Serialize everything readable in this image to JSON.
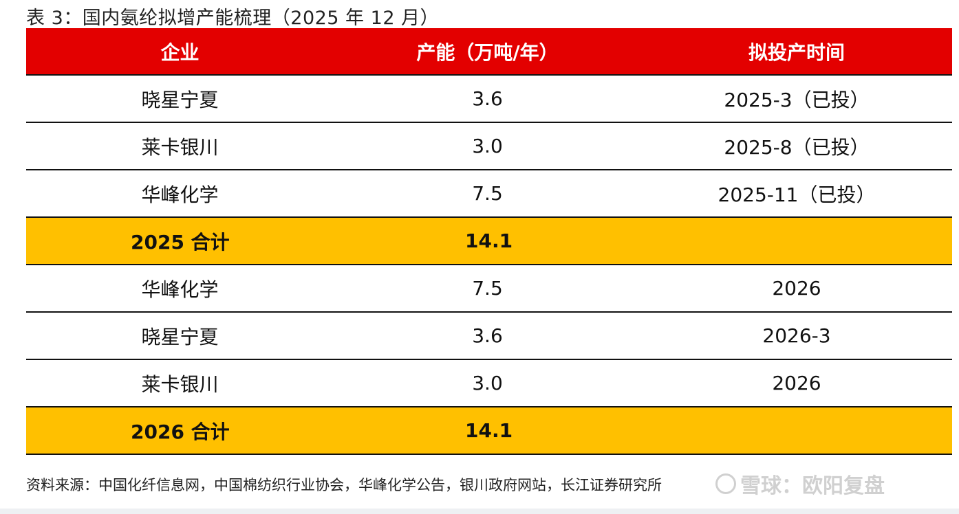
{
  "title": "表 3：国内氨纶拟增产能梳理（2025 年 12 月）",
  "table": {
    "headers": [
      "企业",
      "产能（万吨/年）",
      "拟投产时间"
    ],
    "rows": [
      {
        "company": "晓星宁夏",
        "capacity": "3.6",
        "time": "2025-3（已投）"
      },
      {
        "company": "莱卡银川",
        "capacity": "3.0",
        "time": "2025-8（已投）"
      },
      {
        "company": "华峰化学",
        "capacity": "7.5",
        "time": "2025-11（已投）"
      },
      {
        "company": "2025 合计",
        "capacity": "14.1",
        "time": ""
      },
      {
        "company": "华峰化学",
        "capacity": "7.5",
        "time": "2026"
      },
      {
        "company": "晓星宁夏",
        "capacity": "3.6",
        "time": "2026-3"
      },
      {
        "company": "莱卡银川",
        "capacity": "3.0",
        "time": "2026"
      },
      {
        "company": "2026 合计",
        "capacity": "14.1",
        "time": ""
      }
    ]
  },
  "source": "资料来源：中国化纤信息网，中国棉纺织行业协会，华峰化学公告，银川政府网站，长江证券研究所",
  "watermark": "雪球：欧阳复盘",
  "colors": {
    "header_bg": "#e30000",
    "total_bg": "#ffc000"
  }
}
